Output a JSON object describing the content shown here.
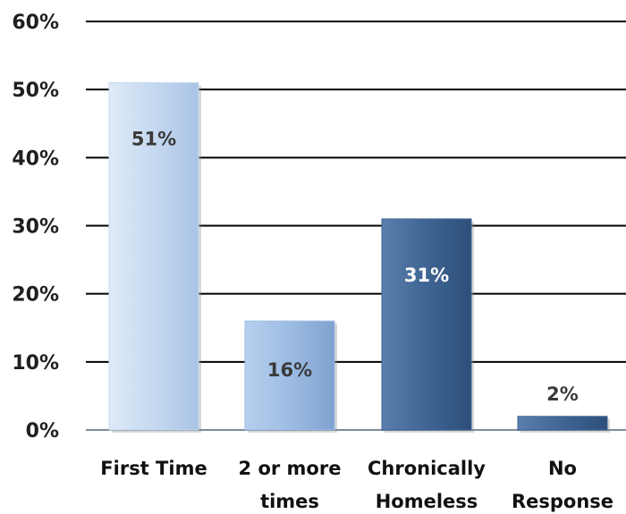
{
  "chart_data": {
    "type": "bar",
    "categories": [
      [
        "First Time"
      ],
      [
        "2 or more",
        "times"
      ],
      [
        "Chronically",
        "Homeless"
      ],
      [
        "No",
        "Response"
      ]
    ],
    "values": [
      51,
      16,
      31,
      2
    ],
    "value_labels": [
      "51%",
      "16%",
      "31%",
      "2%"
    ],
    "bar_colors": [
      "#c5d9f1",
      "#9dbce3",
      "#3f6594",
      "#3f6594"
    ],
    "label_colors": [
      "#3a3a3a",
      "#3a3a3a",
      "#ffffff",
      "#3a3a3a"
    ],
    "yticks": [
      "0%",
      "10%",
      "20%",
      "30%",
      "40%",
      "50%",
      "60%"
    ],
    "ylim": [
      0,
      60
    ],
    "title": "",
    "xlabel": "",
    "ylabel": "",
    "grid": true,
    "legend": false
  }
}
